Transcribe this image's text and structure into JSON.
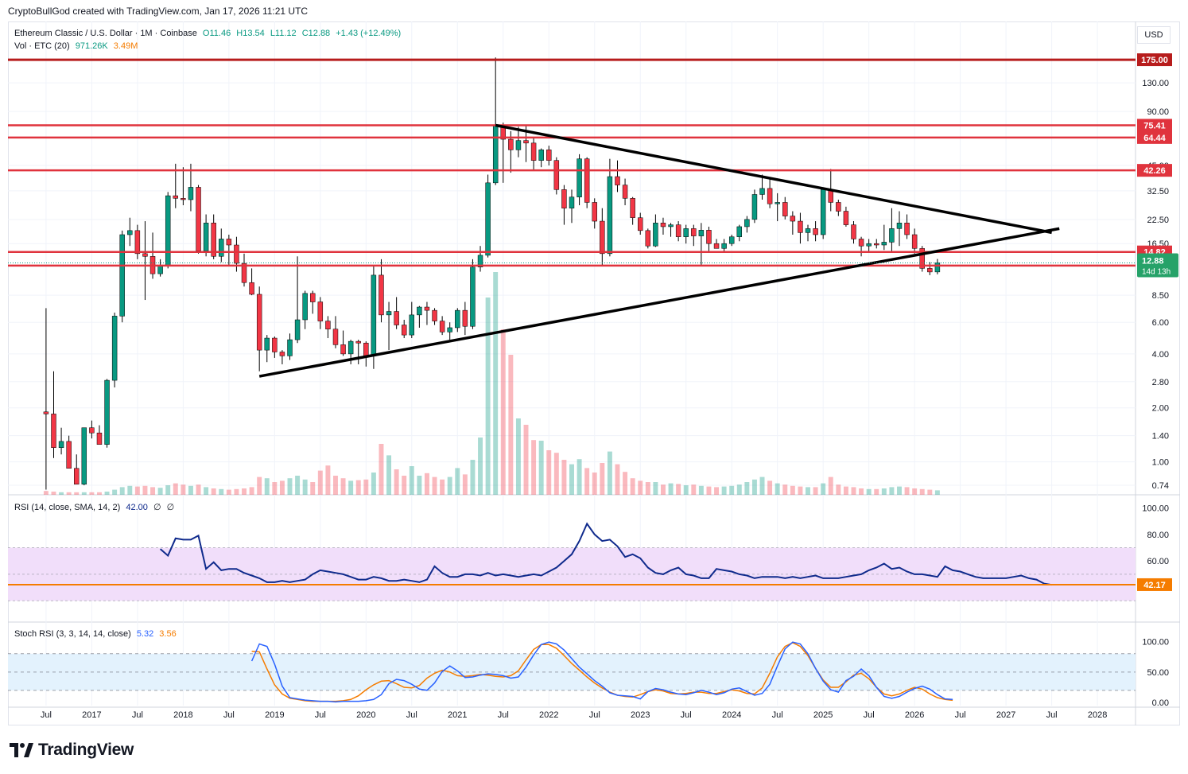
{
  "attribution": "CryptoBullGod created with TradingView.com, Jan 17, 2026 11:21 UTC",
  "logo_text": "TradingView",
  "currency_button": "USD",
  "header": {
    "symbol": "Ethereum Classic / U.S. Dollar · 1M · Coinbase",
    "open": "O11.46",
    "high": "H13.54",
    "low": "L11.12",
    "close": "C12.88",
    "change": "+1.43 (+12.49%)"
  },
  "volume_legend": {
    "label": "Vol · ETC (20)",
    "value": "971.26K",
    "ma_value": "3.49M"
  },
  "rsi_legend": {
    "label": "RSI (14, close, SMA, 14, 2)",
    "value": "42.00",
    "extra1": "∅",
    "extra2": "∅"
  },
  "stoch_legend": {
    "label": "Stoch RSI (3, 3, 14, 14, close)",
    "k": "5.32",
    "d": "3.56"
  },
  "colors": {
    "up": "#089981",
    "down": "#f23645",
    "hline": "#e0333d",
    "topline": "#b71c1c",
    "trend": "#000000",
    "rsi": "#0f2a8c",
    "rsi_band": "#f1defa",
    "rsi_ma": "#f7a21b",
    "stoch_k": "#2962ff",
    "stoch_d": "#f57c00",
    "stoch_band": "#e3f2fd",
    "label_green": "#26a269",
    "label_red": "#e0333d",
    "label_orange": "#f57c00"
  },
  "chart_data": {
    "type": "candlestick",
    "title": "Ethereum Classic / U.S. Dollar · 1M · Coinbase",
    "price_scale": "log",
    "price_ticks": [
      0.74,
      1.0,
      1.4,
      2.0,
      2.8,
      4.0,
      6.0,
      8.5,
      16.5,
      22.5,
      32.5,
      45.0,
      90.0,
      130.0
    ],
    "price_tick_labels": [
      "0.74",
      "1.00",
      "1.40",
      "2.00",
      "2.80",
      "4.00",
      "6.00",
      "8.50",
      "16.50",
      "22.50",
      "32.50",
      "45.00",
      "90.00",
      "130.00"
    ],
    "x_tick_labels": [
      "Jul",
      "2017",
      "Jul",
      "2018",
      "Jul",
      "2019",
      "Jul",
      "2020",
      "Jul",
      "2021",
      "Jul",
      "2022",
      "Jul",
      "2023",
      "Jul",
      "2024",
      "Jul",
      "2025",
      "Jul",
      "2026",
      "Jul",
      "2027",
      "Jul",
      "2028"
    ],
    "x_tick_dates": [
      "2016-07",
      "2017-01",
      "2017-07",
      "2018-01",
      "2018-07",
      "2019-01",
      "2019-07",
      "2020-01",
      "2020-07",
      "2021-01",
      "2021-07",
      "2022-01",
      "2022-07",
      "2023-01",
      "2023-07",
      "2024-01",
      "2024-07",
      "2025-01",
      "2025-07",
      "2026-01",
      "2026-07",
      "2027-01",
      "2027-07",
      "2028-01"
    ],
    "x_range": [
      "2016-02",
      "2028-06"
    ],
    "first_candle": "2016-07",
    "candles": [
      [
        1.9,
        7.2,
        0.7,
        1.85
      ],
      [
        1.85,
        3.2,
        1.05,
        1.2
      ],
      [
        1.2,
        1.55,
        1.1,
        1.3
      ],
      [
        1.3,
        1.4,
        0.95,
        0.92
      ],
      [
        0.92,
        1.1,
        0.76,
        0.75
      ],
      [
        0.75,
        1.55,
        0.74,
        1.55
      ],
      [
        1.55,
        1.7,
        1.35,
        1.45
      ],
      [
        1.45,
        1.6,
        1.25,
        1.25
      ],
      [
        1.25,
        2.9,
        1.2,
        2.85
      ],
      [
        2.85,
        6.8,
        2.6,
        6.5
      ],
      [
        6.5,
        19.5,
        6.0,
        18.5
      ],
      [
        18.5,
        23.0,
        16.0,
        19.5
      ],
      [
        19.5,
        21.0,
        13.5,
        14.5
      ],
      [
        14.5,
        22.0,
        8.0,
        14.0
      ],
      [
        14.0,
        19.0,
        10.5,
        11.2
      ],
      [
        11.2,
        13.5,
        10.8,
        12.5
      ],
      [
        12.5,
        32.0,
        12.0,
        30.5
      ],
      [
        30.5,
        46.0,
        26.0,
        29.5
      ],
      [
        29.5,
        44.0,
        27.0,
        29.0
      ],
      [
        29.0,
        46.0,
        25.0,
        34.0
      ],
      [
        34.0,
        35.0,
        14.5,
        15.0
      ],
      [
        15.0,
        24.0,
        14.0,
        21.5
      ],
      [
        21.5,
        24.0,
        13.5,
        14.0
      ],
      [
        14.0,
        20.0,
        13.0,
        17.5
      ],
      [
        17.5,
        18.5,
        12.5,
        16.2
      ],
      [
        16.2,
        18.0,
        11.5,
        12.8
      ],
      [
        12.8,
        14.5,
        9.5,
        10.0
      ],
      [
        10.0,
        12.0,
        8.5,
        8.6
      ],
      [
        8.6,
        9.5,
        3.2,
        4.2
      ],
      [
        4.2,
        5.1,
        3.6,
        4.9
      ],
      [
        4.9,
        5.0,
        3.8,
        4.1
      ],
      [
        4.1,
        4.2,
        3.5,
        3.9
      ],
      [
        3.9,
        5.2,
        3.7,
        4.8
      ],
      [
        4.8,
        14.0,
        4.6,
        6.2
      ],
      [
        6.2,
        9.0,
        5.5,
        8.7
      ],
      [
        8.7,
        9.0,
        6.7,
        7.8
      ],
      [
        7.8,
        8.3,
        5.5,
        6.1
      ],
      [
        6.1,
        6.5,
        4.9,
        5.5
      ],
      [
        5.5,
        6.5,
        4.3,
        4.5
      ],
      [
        4.5,
        5.4,
        3.9,
        4.0
      ],
      [
        4.0,
        4.8,
        3.5,
        4.7
      ],
      [
        4.7,
        4.8,
        3.5,
        4.6
      ],
      [
        4.6,
        4.7,
        3.4,
        3.9
      ],
      [
        3.9,
        12.5,
        3.3,
        11.0
      ],
      [
        11.0,
        13.5,
        6.0,
        6.6
      ],
      [
        6.6,
        7.8,
        4.2,
        6.9
      ],
      [
        6.9,
        8.3,
        5.5,
        5.8
      ],
      [
        5.8,
        6.2,
        4.9,
        5.1
      ],
      [
        5.1,
        7.8,
        4.9,
        6.6
      ],
      [
        6.6,
        7.4,
        5.6,
        7.3
      ],
      [
        7.3,
        7.8,
        5.8,
        7.0
      ],
      [
        7.0,
        7.2,
        5.8,
        6.1
      ],
      [
        6.1,
        6.5,
        5.1,
        5.3
      ],
      [
        5.3,
        6.0,
        4.8,
        5.6
      ],
      [
        5.6,
        7.2,
        5.3,
        7.0
      ],
      [
        7.0,
        7.8,
        5.1,
        5.7
      ],
      [
        5.7,
        13.5,
        5.5,
        12.2
      ],
      [
        12.2,
        16.0,
        11.5,
        14.2
      ],
      [
        14.2,
        40.0,
        13.8,
        36.0
      ],
      [
        36.0,
        180.0,
        35.0,
        75.0
      ],
      [
        75.0,
        78.0,
        36.0,
        63.0
      ],
      [
        63.0,
        70.0,
        41.0,
        55.0
      ],
      [
        55.0,
        74.0,
        50.0,
        62.0
      ],
      [
        62.0,
        76.0,
        47.0,
        60.0
      ],
      [
        60.0,
        64.0,
        42.0,
        48.0
      ],
      [
        48.0,
        56.0,
        44.0,
        55.0
      ],
      [
        55.0,
        58.0,
        45.0,
        48.0
      ],
      [
        48.0,
        50.0,
        31.0,
        33.0
      ],
      [
        33.0,
        35.0,
        21.0,
        26.0
      ],
      [
        26.0,
        33.0,
        21.5,
        30.0
      ],
      [
        30.0,
        52.0,
        27.0,
        49.0
      ],
      [
        49.0,
        50.0,
        26.0,
        28.0
      ],
      [
        28.0,
        29.5,
        20.0,
        22.0
      ],
      [
        22.0,
        26.0,
        12.5,
        14.5
      ],
      [
        14.5,
        49.0,
        14.0,
        39.0
      ],
      [
        39.0,
        48.0,
        32.0,
        35.0
      ],
      [
        35.0,
        38.0,
        27.0,
        29.5
      ],
      [
        29.5,
        30.0,
        21.0,
        23.0
      ],
      [
        23.0,
        24.5,
        18.5,
        19.5
      ],
      [
        19.5,
        20.0,
        15.5,
        16.0
      ],
      [
        16.0,
        24.0,
        15.8,
        21.5
      ],
      [
        21.5,
        23.0,
        18.5,
        20.5
      ],
      [
        20.5,
        21.5,
        18.0,
        21.0
      ],
      [
        21.0,
        22.0,
        17.0,
        18.0
      ],
      [
        18.0,
        21.0,
        16.5,
        20.0
      ],
      [
        20.0,
        21.0,
        16.0,
        18.2
      ],
      [
        18.2,
        21.5,
        12.5,
        19.6
      ],
      [
        19.6,
        20.5,
        15.0,
        16.5
      ],
      [
        16.5,
        17.5,
        15.5,
        15.5
      ],
      [
        15.5,
        17.5,
        14.8,
        16.5
      ],
      [
        16.5,
        18.5,
        16.0,
        18.0
      ],
      [
        18.0,
        21.0,
        17.0,
        20.5
      ],
      [
        20.5,
        23.5,
        19.0,
        22.5
      ],
      [
        22.5,
        33.0,
        21.5,
        31.0
      ],
      [
        31.0,
        40.0,
        29.0,
        33.5
      ],
      [
        33.5,
        38.5,
        26.0,
        27.5
      ],
      [
        27.5,
        31.5,
        22.0,
        28.0
      ],
      [
        28.0,
        30.0,
        22.5,
        23.5
      ],
      [
        23.5,
        25.0,
        18.5,
        22.0
      ],
      [
        22.0,
        24.5,
        16.5,
        19.0
      ],
      [
        19.0,
        21.0,
        17.0,
        20.0
      ],
      [
        20.0,
        22.0,
        17.0,
        18.5
      ],
      [
        18.5,
        34.0,
        17.5,
        33.0
      ],
      [
        33.0,
        43.0,
        25.0,
        28.0
      ],
      [
        28.0,
        29.0,
        23.5,
        25.0
      ],
      [
        25.0,
        26.5,
        20.5,
        21.0
      ],
      [
        21.0,
        22.0,
        16.5,
        17.5
      ],
      [
        17.5,
        18.0,
        14.0,
        16.0
      ],
      [
        16.0,
        17.5,
        15.0,
        16.5
      ],
      [
        16.5,
        17.5,
        15.5,
        16.2
      ],
      [
        16.2,
        21.0,
        15.2,
        16.8
      ],
      [
        16.8,
        26.0,
        15.0,
        20.0
      ],
      [
        20.0,
        25.0,
        16.0,
        21.5
      ],
      [
        21.5,
        24.0,
        17.5,
        18.5
      ],
      [
        18.5,
        20.0,
        14.5,
        15.5
      ],
      [
        15.5,
        16.0,
        11.5,
        12.0
      ],
      [
        12.0,
        13.0,
        11.0,
        11.46
      ],
      [
        11.46,
        13.54,
        11.12,
        12.88
      ]
    ],
    "volume_pct": [
      0.6,
      0.5,
      0.4,
      0.4,
      0.4,
      0.4,
      0.4,
      0.4,
      0.5,
      0.8,
      1.2,
      1.4,
      1.3,
      1.4,
      1.2,
      1.1,
      1.5,
      1.8,
      1.6,
      1.4,
      1.6,
      1.2,
      1.0,
      0.9,
      0.8,
      0.9,
      1.0,
      1.2,
      2.8,
      2.6,
      2.0,
      2.2,
      2.6,
      3.0,
      2.4,
      2.0,
      3.8,
      4.6,
      3.0,
      2.6,
      2.2,
      2.3,
      2.4,
      3.5,
      8.0,
      6.2,
      4.0,
      3.0,
      4.5,
      3.0,
      3.4,
      2.8,
      2.4,
      2.8,
      4.2,
      3.2,
      5.5,
      9.0,
      31.0,
      35.0,
      26.0,
      22.0,
      12.0,
      11.0,
      8.6,
      8.5,
      7.0,
      6.6,
      5.5,
      4.8,
      5.6,
      4.2,
      3.5,
      5.0,
      6.8,
      4.8,
      3.6,
      2.6,
      2.2,
      2.0,
      2.0,
      1.6,
      1.8,
      1.7,
      1.5,
      1.6,
      1.4,
      1.3,
      1.2,
      1.3,
      1.4,
      1.6,
      2.0,
      2.4,
      2.8,
      2.2,
      1.8,
      1.6,
      1.4,
      1.3,
      1.2,
      1.2,
      1.8,
      2.8,
      1.6,
      1.3,
      1.2,
      1.0,
      0.9,
      0.9,
      1.0,
      1.2,
      1.3,
      1.2,
      1.0,
      0.9,
      0.8,
      0.7
    ],
    "rsi": [
      69,
      64,
      77,
      76,
      76,
      79,
      54,
      59,
      53,
      54,
      54,
      51,
      49,
      47,
      44,
      44,
      45,
      44,
      45,
      46,
      50,
      53,
      52,
      51,
      50,
      48,
      46,
      46,
      48,
      47,
      45,
      45,
      46,
      45,
      44,
      46,
      56,
      51,
      48,
      48,
      50,
      50,
      49,
      51,
      49,
      50,
      49,
      48,
      49,
      50,
      49,
      52,
      55,
      60,
      65,
      75,
      88,
      80,
      75,
      76,
      71,
      63,
      65,
      62,
      55,
      51,
      50,
      53,
      55,
      50,
      49,
      47,
      47,
      54,
      53,
      52,
      50,
      49,
      47,
      48,
      48,
      48,
      47,
      48,
      47,
      48,
      49,
      47,
      47,
      47,
      48,
      49,
      50,
      53,
      55,
      58,
      54,
      55,
      52,
      50,
      50,
      49,
      48,
      56,
      53,
      52,
      50,
      48,
      47,
      47,
      47,
      47,
      48,
      49,
      47,
      46,
      43,
      42
    ],
    "rsi_line": 42.17,
    "rsi_ticks": [
      40,
      60,
      80,
      100
    ],
    "rsi_bands": [
      30,
      50,
      70
    ],
    "stoch_k": [
      68,
      96,
      92,
      63,
      27,
      8,
      6,
      4,
      3,
      2,
      2,
      1,
      2,
      2,
      2,
      3,
      5,
      13,
      31,
      38,
      36,
      30,
      22,
      20,
      32,
      51,
      60,
      52,
      41,
      42,
      45,
      47,
      46,
      44,
      40,
      42,
      58,
      78,
      95,
      99,
      96,
      86,
      72,
      58,
      47,
      36,
      27,
      16,
      12,
      11,
      10,
      6,
      18,
      23,
      21,
      17,
      14,
      13,
      16,
      20,
      17,
      13,
      16,
      22,
      24,
      18,
      12,
      15,
      30,
      60,
      88,
      99,
      96,
      80,
      56,
      35,
      21,
      17,
      36,
      43,
      55,
      44,
      25,
      10,
      7,
      10,
      17,
      23,
      27,
      22,
      13,
      6,
      5
    ],
    "stoch_d": [
      84,
      83,
      55,
      29,
      14,
      7,
      5,
      3,
      2,
      2,
      2,
      2,
      3,
      5,
      11,
      21,
      29,
      35,
      36,
      31,
      25,
      24,
      28,
      40,
      48,
      53,
      50,
      44,
      43,
      44,
      46,
      45,
      43,
      42,
      44,
      52,
      70,
      87,
      95,
      95,
      89,
      77,
      64,
      53,
      42,
      32,
      24,
      17,
      12,
      10,
      9,
      13,
      18,
      21,
      19,
      15,
      14,
      15,
      17,
      17,
      15,
      15,
      18,
      21,
      19,
      15,
      14,
      24,
      48,
      75,
      92,
      98,
      92,
      77,
      56,
      37,
      25,
      25,
      34,
      45,
      48,
      39,
      25,
      14,
      11,
      14,
      20,
      25,
      22,
      14,
      8,
      5,
      3.6
    ],
    "stoch_start": "2018-10",
    "stoch_ticks": [
      0,
      50,
      100
    ],
    "stoch_tick_labels": [
      "0.00",
      "50.00",
      "100.00"
    ],
    "stoch_bands": [
      20,
      50,
      80
    ],
    "horizontal_levels": [
      {
        "price": 175.0,
        "label": "175.00",
        "style": "top"
      },
      {
        "price": 75.41,
        "label": "75.41",
        "style": "red"
      },
      {
        "price": 64.44,
        "label": "64.44",
        "style": "red"
      },
      {
        "price": 42.26,
        "label": "42.26",
        "style": "red"
      },
      {
        "price": 14.82,
        "label": "14.82",
        "style": "red"
      },
      {
        "price": 12.44,
        "label": "12.44",
        "style": "red"
      }
    ],
    "trendlines": [
      {
        "from": [
          "2018-11",
          3.0
        ],
        "to": [
          "2027-08",
          20.0
        ]
      },
      {
        "from": [
          "2021-06",
          75.4
        ],
        "to": [
          "2027-07",
          19.0
        ]
      }
    ],
    "last_price_label": "12.88",
    "countdown_label": "14d 13h"
  }
}
